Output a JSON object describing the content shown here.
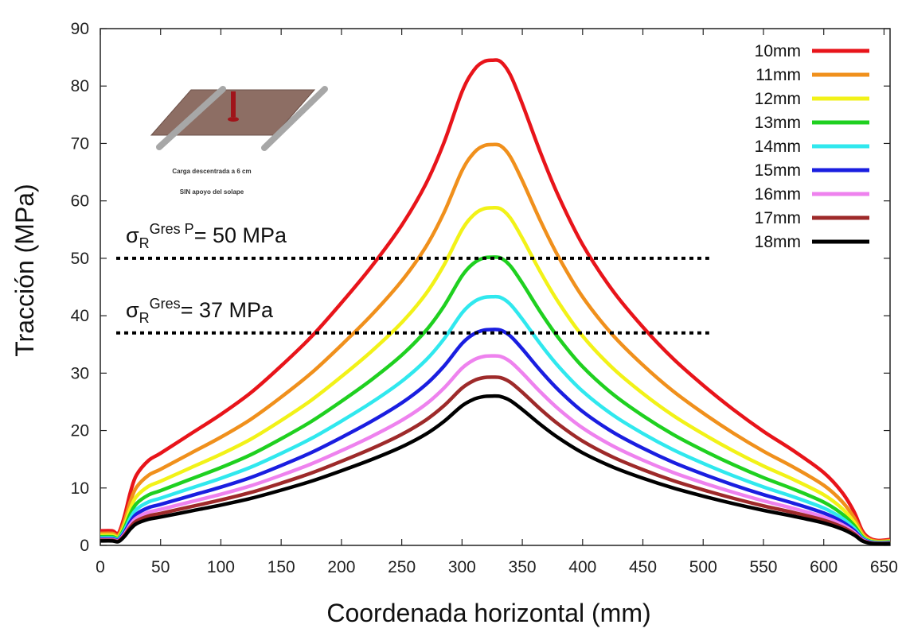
{
  "chart_data": {
    "type": "line",
    "title": "",
    "xlabel": "Coordenada horizontal (mm)",
    "ylabel": "Tracción (MPa)",
    "xlim": [
      0,
      655
    ],
    "ylim": [
      0,
      90
    ],
    "xticks": [
      0,
      50,
      100,
      150,
      200,
      250,
      300,
      350,
      400,
      450,
      500,
      550,
      600,
      650
    ],
    "yticks": [
      0,
      10,
      20,
      30,
      40,
      50,
      60,
      70,
      80,
      90
    ],
    "grid": false,
    "legend_position": "top-right",
    "x": [
      0,
      10,
      15,
      20,
      25,
      30,
      40,
      50,
      75,
      100,
      125,
      150,
      175,
      200,
      225,
      250,
      270,
      285,
      300,
      310,
      318,
      325,
      332,
      340,
      350,
      365,
      380,
      400,
      425,
      450,
      475,
      500,
      525,
      550,
      575,
      600,
      615,
      625,
      632,
      638,
      645,
      655
    ],
    "series": [
      {
        "name": "10mm",
        "color": "#e8141a",
        "peak": 84.5
      },
      {
        "name": "11mm",
        "color": "#f0901c",
        "peak": 69.8
      },
      {
        "name": "12mm",
        "color": "#f2f218",
        "peak": 58.8
      },
      {
        "name": "13mm",
        "color": "#1fd020",
        "peak": 50.2
      },
      {
        "name": "14mm",
        "color": "#30e8ee",
        "peak": 43.3
      },
      {
        "name": "15mm",
        "color": "#1a1ee0",
        "peak": 37.6
      },
      {
        "name": "16mm",
        "color": "#ee82ee",
        "peak": 33.0
      },
      {
        "name": "17mm",
        "color": "#9e2a2a",
        "peak": 29.3
      },
      {
        "name": "18mm",
        "color": "#000000",
        "peak": 26.0
      }
    ],
    "reference_lines": [
      {
        "y": 50,
        "x_end": 505,
        "label_main": "σ",
        "label_sub": "R",
        "label_sup": "Gres P",
        "label_value": "= 50 MPa"
      },
      {
        "y": 37,
        "x_end": 505,
        "label_main": "σ",
        "label_sub": "R",
        "label_sup": "Gres",
        "label_value": "= 37 MPa"
      }
    ]
  },
  "inset": {
    "line1": "Carga descentrada a 6 cm",
    "line2": "SIN apoyo del solape"
  }
}
